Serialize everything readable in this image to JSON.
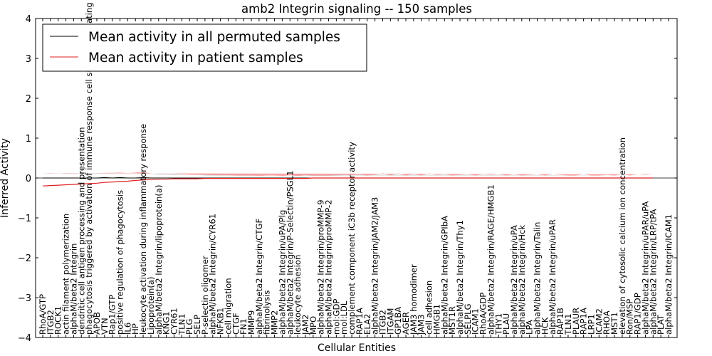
{
  "chart_data": {
    "type": "line",
    "title": "amb2 Integrin signaling -- 150 samples",
    "xlabel": "Cellular Entities",
    "ylabel": "Inferred Activity",
    "ylim": [
      -4,
      4
    ],
    "yticks": [
      "4",
      "3",
      "2",
      "1",
      "0",
      "−1",
      "−2",
      "−3",
      "−4"
    ],
    "ytick_values": [
      4,
      3,
      2,
      1,
      0,
      -1,
      -2,
      -3,
      -4
    ],
    "legend_position": "top-left",
    "series": [
      {
        "name": "Mean activity in all permuted samples",
        "color": "#000000",
        "band_color": "#b0b0b0"
      },
      {
        "name": "Mean activity in patient samples",
        "color": "#e02020",
        "band_color": "#ff6b6b"
      }
    ],
    "categories": [
      "RhoA/GTP",
      "ITGB2",
      "ROCK1",
      "actin filament polymerization",
      "alphaM/beta2 Integrin",
      "dendritic cell antigen processing and presentation",
      "phagocytosis triggered by activation of immune response cell surface activating receptor",
      "APOB",
      "VTN",
      "Rap1/GTP",
      "positive regulation of phagocytosis",
      "IL6",
      "HP",
      "leukocyte activation during inflammatory response",
      "Lipoprotein(a)",
      "alphaM/beta2 Integrin/lipoprotein(a)",
      "KNG1",
      "CYR61",
      "TLN1",
      "PLG",
      "SELP",
      "P-selectin oligomer",
      "alphaM/beta2 Integrin/CYR61",
      "NFKB1",
      "cell migration",
      "CTGF",
      "FN1",
      "MMP9",
      "alphaM/beta2 Integrin/CTGF",
      "fibrinolysis",
      "MMP2",
      "alphaM/beta2 Integrin/uPA/Plg",
      "alphaM/beta2 Integrin/P-Selectin/PSGL1",
      "leukocyte adhesion",
      "JAM2",
      "MPO",
      "alphaM/beta2 Integrin/proMMP-9",
      "alphaM/beta2 Integrin/proMMP-2",
      "mol:GDP",
      "mol:LDL",
      "complement component iC3b receptor activity",
      "RAP1A",
      "ELA2",
      "alphaM/beta2 Integrin/JAM2/JAM3",
      "ITGB2",
      "ITGAM",
      "GP1BA",
      "AGER",
      "JAM3 homodimer",
      "JAM3",
      "cell adhesion",
      "HMGB1",
      "alphaM/beta2 Integrin/GPIbA",
      "MST1R",
      "alphaM/beta2 Integrin/Thy1",
      "SELPLG",
      "ICAM1",
      "RhoA/GDP",
      "alphaM/beta2 Integrin/RAGE/HMGB1",
      "THY1",
      "PLAU",
      "alphaM/beta2 Integrin/uPA",
      "alphaM/beta2 Integrin/Hck",
      "LPA",
      "alphaM/beta2 Integrin/Talin",
      "HCK",
      "alphaM/beta2 Integrin/uPAR",
      "RAP1B",
      "TLN1",
      "PLAUR",
      "RAP1A",
      "LRP1",
      "ICAM2",
      "RHOA",
      "MST1",
      "elevation of cytosolic calcium ion concentration",
      "Ron/MSP",
      "RAP1/GDP",
      "alphaM/beta2 Integrin/uPAR/uPA",
      "alphaM/beta2 Integrin/LRP/tPA",
      "PLAT",
      "alphaM/beta2 Integrin/ICAM1"
    ],
    "permuted_mean": [
      0.0,
      0.0,
      0.0,
      0.0,
      0.0,
      0.0,
      0.0,
      0.0,
      0.01,
      0.0,
      0.01,
      0.0,
      0.0,
      0.01,
      0.0,
      0.0,
      0.0,
      0.0,
      0.0,
      0.0,
      0.0,
      0.0,
      0.0,
      0.0,
      0.0,
      0.0,
      0.0,
      0.0,
      0.0,
      0.0,
      0.0,
      0.0,
      0.0,
      0.0,
      0.0,
      0.0,
      0.0,
      0.0,
      0.0,
      0.0,
      0.0,
      0.0,
      0.0,
      0.0,
      0.0,
      0.0,
      0.0,
      0.0,
      0.0,
      0.0,
      0.0,
      0.0,
      0.0,
      0.0,
      0.0,
      0.0,
      0.0,
      0.0,
      0.0,
      0.0,
      0.0,
      0.0,
      0.0,
      0.0,
      0.0,
      0.0,
      0.0,
      0.0,
      0.0,
      0.0,
      0.0,
      0.0,
      0.0,
      0.0,
      0.0,
      0.0,
      0.0,
      0.0,
      0.0,
      0.0
    ],
    "permuted_band": [
      0.12,
      0.12,
      0.12,
      0.1,
      0.1,
      0.1,
      0.1,
      0.1,
      0.1,
      0.1,
      0.1,
      0.1,
      0.12,
      0.14,
      0.1,
      0.08,
      0.08,
      0.07,
      0.08,
      0.1,
      0.08,
      0.06,
      0.06,
      0.06,
      0.06,
      0.06,
      0.06,
      0.06,
      0.08,
      0.08,
      0.08,
      0.08,
      0.07,
      0.06,
      0.06,
      0.05,
      0.05,
      0.05,
      0.05,
      0.06,
      0.06,
      0.06,
      0.06,
      0.06,
      0.06,
      0.06,
      0.06,
      0.06,
      0.06,
      0.06,
      0.06,
      0.06,
      0.06,
      0.06,
      0.06,
      0.06,
      0.06,
      0.06,
      0.06,
      0.06,
      0.06,
      0.06,
      0.06,
      0.06,
      0.06,
      0.06,
      0.06,
      0.06,
      0.06,
      0.06,
      0.06,
      0.06,
      0.06,
      0.06,
      0.06,
      0.06,
      0.06,
      0.06,
      0.06,
      0.06
    ],
    "patient_mean": [
      -0.2,
      -0.19,
      -0.18,
      -0.17,
      -0.16,
      -0.15,
      -0.14,
      -0.13,
      -0.11,
      -0.1,
      -0.09,
      -0.08,
      -0.06,
      -0.05,
      -0.04,
      -0.03,
      -0.03,
      -0.02,
      -0.02,
      -0.02,
      -0.02,
      -0.01,
      -0.01,
      -0.01,
      -0.01,
      -0.01,
      -0.01,
      -0.01,
      -0.01,
      -0.01,
      -0.01,
      -0.01,
      -0.01,
      -0.01,
      -0.01,
      0.0,
      0.0,
      0.0,
      0.0,
      0.0,
      0.0,
      0.0,
      0.0,
      0.0,
      0.0,
      0.0,
      0.0,
      0.0,
      0.0,
      0.0,
      0.0,
      0.0,
      0.0,
      0.0,
      0.0,
      0.0,
      0.0,
      0.0,
      0.0,
      0.0,
      0.0,
      0.0,
      0.0,
      0.0,
      0.0,
      0.0,
      0.0,
      0.0,
      0.0,
      0.0,
      0.0,
      0.0,
      0.0,
      0.0,
      0.0,
      0.0,
      0.0,
      0.0,
      0.0,
      0.0
    ],
    "patient_band": [
      0.32,
      0.3,
      0.3,
      0.28,
      0.27,
      0.27,
      0.26,
      0.25,
      0.24,
      0.23,
      0.23,
      0.2,
      0.2,
      0.2,
      0.16,
      0.14,
      0.14,
      0.13,
      0.12,
      0.1,
      0.1,
      0.09,
      0.08,
      0.08,
      0.08,
      0.07,
      0.07,
      0.07,
      0.06,
      0.07,
      0.07,
      0.06,
      0.08,
      0.06,
      0.08,
      0.06,
      0.06,
      0.06,
      0.07,
      0.08,
      0.07,
      0.09,
      0.06,
      0.08,
      0.12,
      0.06,
      0.12,
      0.06,
      0.1,
      0.06,
      0.12,
      0.08,
      0.1,
      0.06,
      0.08,
      0.1,
      0.06,
      0.1,
      0.08,
      0.1,
      0.06,
      0.1,
      0.06,
      0.08,
      0.1,
      0.06,
      0.1,
      0.08,
      0.06,
      0.06,
      0.1,
      0.06,
      0.06,
      0.08,
      0.06,
      0.1,
      0.06,
      0.1,
      0.08,
      0.1
    ]
  }
}
